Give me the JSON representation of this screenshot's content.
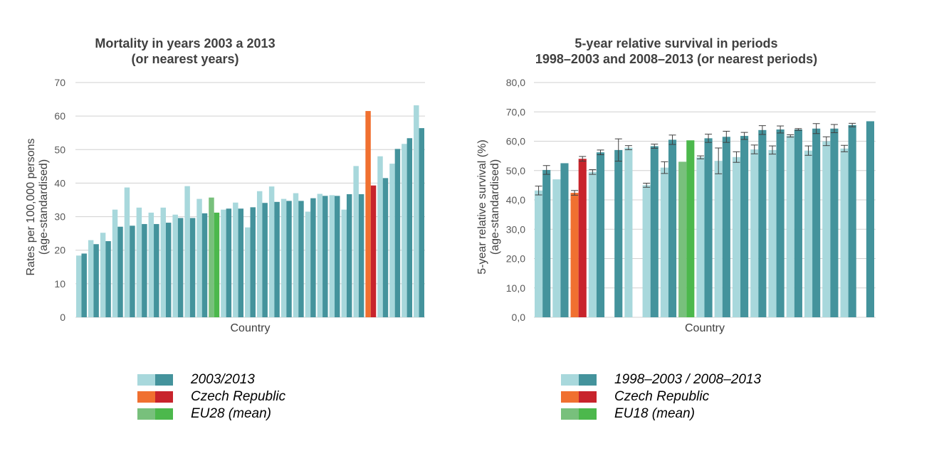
{
  "colors": {
    "period1": "#a8d8dc",
    "period2": "#44939c",
    "cz1": "#f07030",
    "cz2": "#c8242c",
    "eu1": "#78c07c",
    "eu2": "#4cb84c",
    "grid": "#d0d0d0",
    "errorbar": "#404040"
  },
  "chart_data": [
    {
      "type": "bar",
      "title": "Mortality in years 2003 a 2013\n(or nearest years)",
      "title_lines": [
        "Mortality in years 2003 a 2013",
        "(or nearest years)"
      ],
      "xlabel": "Country",
      "ylabel_lines": [
        "Rates per 100,000 persons",
        "(age-standardised)"
      ],
      "ylim": [
        0,
        70
      ],
      "yticks": [
        "0",
        "10",
        "20",
        "30",
        "40",
        "50",
        "60",
        "70"
      ],
      "grid": true,
      "legend_position": "bottom",
      "legend": [
        {
          "label": "2003/2013",
          "kind": "normal"
        },
        {
          "label": "Czech Republic",
          "kind": "cz"
        },
        {
          "label": "EU28 (mean)",
          "kind": "eu"
        }
      ],
      "series": [
        {
          "name": "2003"
        },
        {
          "name": "2013"
        }
      ],
      "groups": [
        {
          "kind": "normal",
          "values": [
            18.4,
            19.0
          ]
        },
        {
          "kind": "normal",
          "values": [
            23.0,
            21.8
          ]
        },
        {
          "kind": "normal",
          "values": [
            25.2,
            22.7
          ]
        },
        {
          "kind": "normal",
          "values": [
            32.1,
            27.0
          ]
        },
        {
          "kind": "normal",
          "values": [
            38.7,
            27.3
          ]
        },
        {
          "kind": "normal",
          "values": [
            32.7,
            27.8
          ]
        },
        {
          "kind": "normal",
          "values": [
            31.2,
            27.8
          ]
        },
        {
          "kind": "normal",
          "values": [
            32.7,
            28.2
          ]
        },
        {
          "kind": "normal",
          "values": [
            30.6,
            29.6
          ]
        },
        {
          "kind": "normal",
          "values": [
            39.1,
            29.6
          ]
        },
        {
          "kind": "normal",
          "values": [
            35.3,
            31.0
          ]
        },
        {
          "kind": "eu",
          "values": [
            35.7,
            31.2
          ]
        },
        {
          "kind": "normal",
          "values": [
            32.1,
            32.4
          ]
        },
        {
          "kind": "normal",
          "values": [
            34.2,
            32.4
          ]
        },
        {
          "kind": "normal",
          "values": [
            26.8,
            32.8
          ]
        },
        {
          "kind": "normal",
          "values": [
            37.6,
            34.1
          ]
        },
        {
          "kind": "normal",
          "values": [
            39.0,
            34.4
          ]
        },
        {
          "kind": "normal",
          "values": [
            35.3,
            34.7
          ]
        },
        {
          "kind": "normal",
          "values": [
            37.0,
            34.7
          ]
        },
        {
          "kind": "normal",
          "values": [
            31.5,
            35.5
          ]
        },
        {
          "kind": "normal",
          "values": [
            36.8,
            36.2
          ]
        },
        {
          "kind": "normal",
          "values": [
            36.4,
            36.2
          ]
        },
        {
          "kind": "normal",
          "values": [
            32.1,
            36.7
          ]
        },
        {
          "kind": "normal",
          "values": [
            45.1,
            36.7
          ]
        },
        {
          "kind": "cz",
          "values": [
            61.5,
            39.3
          ]
        },
        {
          "kind": "normal",
          "values": [
            48.0,
            41.5
          ]
        },
        {
          "kind": "normal",
          "values": [
            45.8,
            50.2
          ]
        },
        {
          "kind": "normal",
          "values": [
            51.7,
            53.4
          ]
        },
        {
          "kind": "normal",
          "values": [
            63.2,
            56.4
          ]
        }
      ]
    },
    {
      "type": "bar",
      "title": "5-year relative survival in periods\n1998–2003 and 2008–2013 (or nearest periods)",
      "title_lines": [
        "5-year relative survival in periods",
        "1998–2003  and 2008–2013 (or nearest periods)"
      ],
      "xlabel": "Country",
      "ylabel_lines": [
        "5-year relative  survival  (%)",
        "(age-standardised)"
      ],
      "ylim": [
        0,
        80
      ],
      "yticks": [
        "0,0",
        "10,0",
        "20,0",
        "30,0",
        "40,0",
        "50,0",
        "60,0",
        "70,0",
        "80,0"
      ],
      "grid": true,
      "legend_position": "bottom",
      "legend": [
        {
          "label": "1998–2003 / 2008–2013",
          "kind": "normal"
        },
        {
          "label": "Czech Republic",
          "kind": "cz"
        },
        {
          "label": "EU18 (mean)",
          "kind": "eu"
        }
      ],
      "series": [
        {
          "name": "1998–2003"
        },
        {
          "name": "2008–2013"
        }
      ],
      "groups": [
        {
          "kind": "normal",
          "values": [
            43.2,
            50.2
          ],
          "errors": [
            1.5,
            1.5
          ]
        },
        {
          "kind": "normal",
          "values": [
            47.0,
            52.5
          ],
          "errors": [
            0,
            0
          ]
        },
        {
          "kind": "cz",
          "values": [
            42.4,
            54.0
          ],
          "errors": [
            0.8,
            0.8
          ]
        },
        {
          "kind": "normal",
          "values": [
            49.5,
            56.2
          ],
          "errors": [
            0.8,
            0.8
          ]
        },
        {
          "kind": "normal",
          "values": [
            null,
            57.0
          ],
          "errors": [
            null,
            3.8
          ]
        },
        {
          "kind": "normal",
          "values": [
            57.8,
            null
          ],
          "errors": [
            0.7,
            null
          ]
        },
        {
          "kind": "normal",
          "values": [
            45.0,
            58.3
          ],
          "errors": [
            0.7,
            0.7
          ]
        },
        {
          "kind": "normal",
          "values": [
            51.0,
            60.5
          ],
          "errors": [
            2.0,
            1.6
          ]
        },
        {
          "kind": "eu",
          "values": [
            53.0,
            60.3
          ],
          "errors": [
            null,
            null
          ]
        },
        {
          "kind": "normal",
          "values": [
            54.5,
            61.0
          ],
          "errors": [
            0.5,
            1.4
          ]
        },
        {
          "kind": "normal",
          "values": [
            53.3,
            61.5
          ],
          "errors": [
            4.4,
            1.9
          ]
        },
        {
          "kind": "normal",
          "values": [
            54.6,
            61.8
          ],
          "errors": [
            1.8,
            1.2
          ]
        },
        {
          "kind": "normal",
          "values": [
            57.2,
            63.8
          ],
          "errors": [
            1.5,
            1.5
          ]
        },
        {
          "kind": "normal",
          "values": [
            57.0,
            64.0
          ],
          "errors": [
            1.4,
            1.2
          ]
        },
        {
          "kind": "normal",
          "values": [
            61.8,
            64.0
          ],
          "errors": [
            0.4,
            0.3
          ]
        },
        {
          "kind": "normal",
          "values": [
            56.8,
            64.3
          ],
          "errors": [
            1.6,
            1.7
          ]
        },
        {
          "kind": "normal",
          "values": [
            60.0,
            64.3
          ],
          "errors": [
            1.5,
            1.4
          ]
        },
        {
          "kind": "normal",
          "values": [
            57.5,
            65.5
          ],
          "errors": [
            1.1,
            0.6
          ]
        },
        {
          "kind": "normal",
          "values": [
            null,
            66.8
          ],
          "errors": [
            null,
            null
          ]
        }
      ]
    }
  ]
}
